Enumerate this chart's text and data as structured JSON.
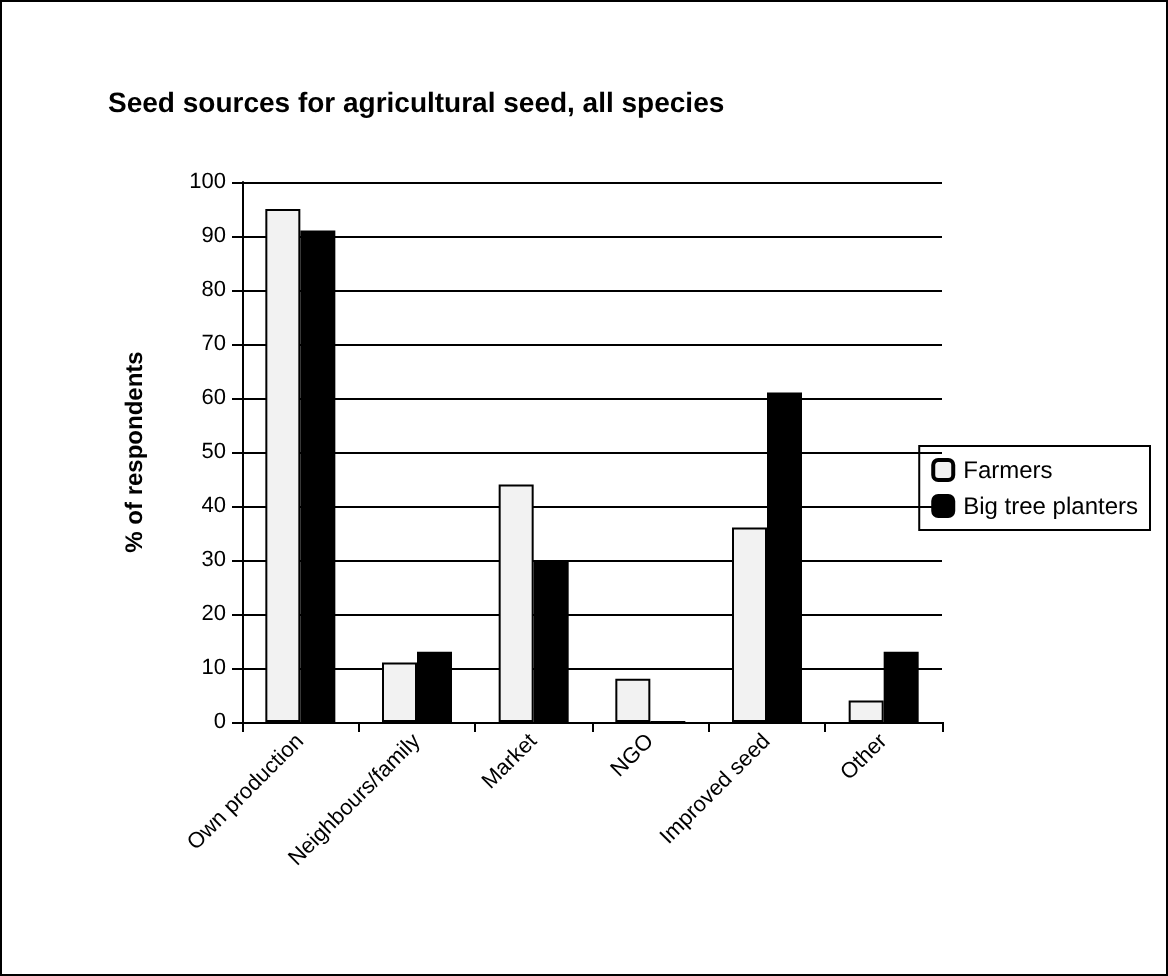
{
  "chart_data": {
    "type": "bar",
    "title": "Seed sources for agricultural seed, all species",
    "ylabel": "% of respondents",
    "categories": [
      "Own production",
      "Neighbours/family",
      "Market",
      "NGO",
      "Improved seed",
      "Other"
    ],
    "series": [
      {
        "name": "Farmers",
        "color": "#f2f2f2",
        "values": [
          95,
          11,
          44,
          8,
          36,
          4
        ]
      },
      {
        "name": "Big tree planters",
        "color": "#000000",
        "values": [
          91,
          13,
          30,
          0,
          61,
          13
        ]
      }
    ],
    "ylim": [
      0,
      100
    ],
    "yticks": [
      0,
      10,
      20,
      30,
      40,
      50,
      60,
      70,
      80,
      90,
      100
    ],
    "grid": "y",
    "legend": "right"
  }
}
